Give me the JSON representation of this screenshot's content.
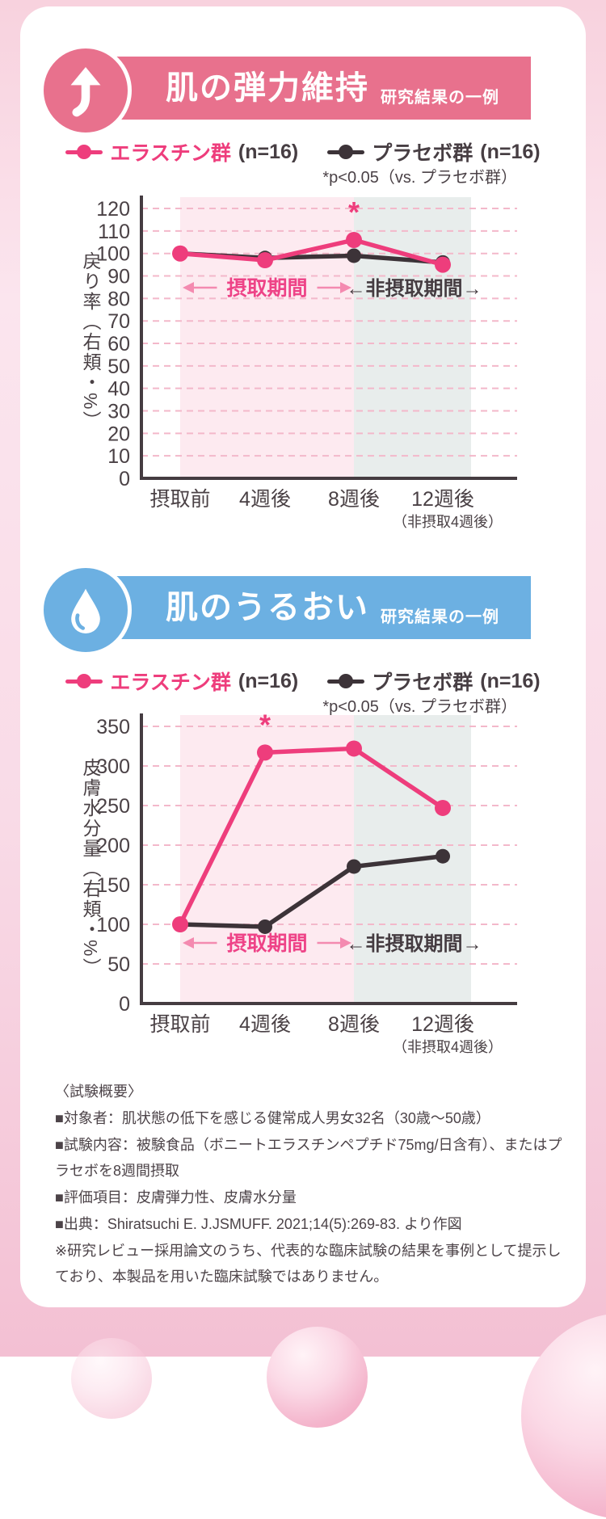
{
  "sections": [
    {
      "title": "肌の弾力維持",
      "subtitle": "研究結果の一例",
      "color": "#e8718d",
      "icon": "arrow-up"
    },
    {
      "title": "肌のうるおい",
      "subtitle": "研究結果の一例",
      "color": "#6cb0e2",
      "icon": "water-drop"
    }
  ],
  "legend": {
    "series1_label": "エラスチン群",
    "series1_n": "(n=16)",
    "series2_label": "プラセボ群",
    "series2_n": "(n=16)"
  },
  "chart_data": [
    {
      "type": "line",
      "title": "肌の弾力維持",
      "subtitle": "研究結果の一例",
      "categories": [
        "摂取前",
        "4週後",
        "8週後",
        "12週後"
      ],
      "last_category_note": "（非摂取4週後）",
      "ylabel": "戻り率（右頬・%）",
      "ylim": [
        0,
        120
      ],
      "ytick_step": 10,
      "grid": "dashed-horizontal",
      "legend_position": "top",
      "annotation": "*p<0.05（vs. プラセボ群）",
      "bands": [
        {
          "label": "摂取期間",
          "from_category": 0,
          "to_category": 2,
          "color": "#fdeaf0"
        },
        {
          "label": "非摂取期間",
          "from_category": 2,
          "to_category": 3,
          "color": "#e8edec"
        }
      ],
      "series": [
        {
          "name": "エラスチン群(n=16)",
          "color": "#ee3d7c",
          "values": [
            100,
            97,
            106,
            95
          ],
          "significant_at": 2
        },
        {
          "name": "プラセボ群(n=16)",
          "color": "#3c3338",
          "values": [
            100,
            98,
            99,
            96
          ]
        }
      ]
    },
    {
      "type": "line",
      "title": "肌のうるおい",
      "subtitle": "研究結果の一例",
      "categories": [
        "摂取前",
        "4週後",
        "8週後",
        "12週後"
      ],
      "last_category_note": "（非摂取4週後）",
      "ylabel": "皮膚水分量（右頬・%）",
      "ylim": [
        0,
        350
      ],
      "ytick_step": 50,
      "grid": "dashed-horizontal",
      "legend_position": "top",
      "annotation": "*p<0.05（vs. プラセボ群）",
      "bands": [
        {
          "label": "摂取期間",
          "from_category": 0,
          "to_category": 2,
          "color": "#fdeaf0"
        },
        {
          "label": "非摂取期間",
          "from_category": 2,
          "to_category": 3,
          "color": "#e8edec"
        }
      ],
      "series": [
        {
          "name": "エラスチン群(n=16)",
          "color": "#ee3d7c",
          "values": [
            100,
            317,
            322,
            247
          ],
          "significant_at": 1
        },
        {
          "name": "プラセボ群(n=16)",
          "color": "#3c3338",
          "values": [
            100,
            97,
            173,
            186
          ]
        }
      ]
    }
  ],
  "footer": {
    "heading": "〈試験概要〉",
    "lines": [
      "■対象者：肌状態の低下を感じる健常成人男女32名（30歳〜50歳）",
      "■試験内容：被験食品（ボニートエラスチンペプチド75mg/日含有）、またはプラセボを8週間摂取",
      "■評価項目：皮膚弾力性、皮膚水分量",
      "■出典：Shiratsuchi E. J.JSMUFF. 2021;14(5):269-83. より作図",
      "※研究レビュー採用論文のうち、代表的な臨床試験の結果を事例として提示しており、本製品を用いた臨床試験ではありません。"
    ]
  }
}
